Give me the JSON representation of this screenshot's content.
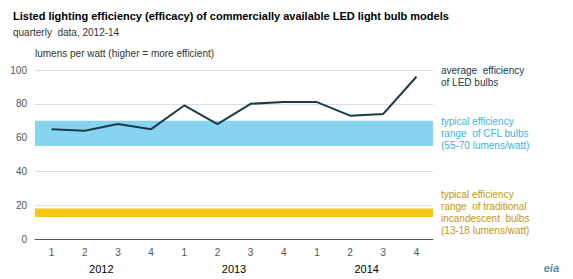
{
  "chart_data": {
    "type": "line",
    "title": "Listed lighting efficiency (efficacy) of commercially available LED light bulb models",
    "subtitle": "quarterly  data, 2012-14",
    "y_label": "lumens per watt (higher = more efficient)",
    "categories": [
      "1",
      "2",
      "3",
      "4",
      "1",
      "2",
      "3",
      "4",
      "1",
      "2",
      "3",
      "4"
    ],
    "category_groups": [
      "2012",
      "2013",
      "2014"
    ],
    "values": [
      65,
      64,
      68,
      65,
      79,
      68,
      80,
      81,
      81,
      73,
      74,
      96
    ],
    "color": "#1b3a4b",
    "value_annotation": {
      "text": "average  efficiency\nof LED bulbs",
      "color": "#1b3a4b"
    },
    "bands": [
      {
        "low": 55,
        "high": 70,
        "color": "#87d4f0",
        "annotation": "typical efficiency\nrange  of CFL bulbs\n(55-70 lumens/watt)",
        "annotation_color": "#40b4e5"
      },
      {
        "low": 13,
        "high": 18,
        "color": "#f5c518",
        "annotation": "typical efficiency\nrange  of traditional\nincandescent  bulbs\n(13-18 lumens/watt)",
        "annotation_color": "#c8960c"
      }
    ],
    "ylim": [
      0,
      100
    ],
    "yticks": [
      0,
      20,
      40,
      60,
      80,
      100
    ],
    "grid": true,
    "logo": {
      "text": "eia",
      "color": "#4a90a4"
    }
  }
}
